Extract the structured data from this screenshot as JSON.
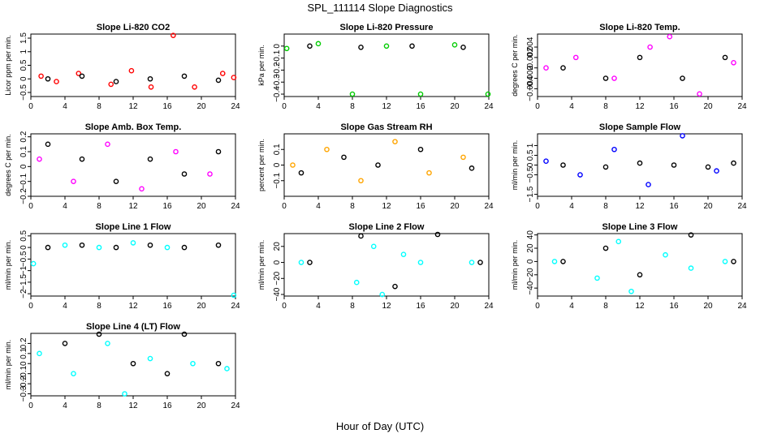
{
  "figure": {
    "title": "SPL_111114  Slope Diagnostics",
    "xlabel": "Hour of Day (UTC)"
  },
  "chart_data": [
    {
      "type": "scatter",
      "title": "Slope Li-820 CO2",
      "ylabel": "Licor ppm per min.",
      "color": "#ff0000",
      "ylim": [
        -0.65,
        1.65
      ],
      "yticks": [
        -0.5,
        0.0,
        0.5,
        1.0,
        1.5
      ],
      "xlim": [
        0,
        24
      ],
      "xticks": [
        0,
        4,
        8,
        12,
        16,
        20,
        24
      ],
      "series": [
        {
          "color": "#ff0000",
          "points": [
            [
              1.2,
              0.1
            ],
            [
              3.0,
              -0.1
            ],
            [
              5.6,
              0.2
            ],
            [
              9.4,
              -0.2
            ],
            [
              11.8,
              0.3
            ],
            [
              14.1,
              -0.3
            ],
            [
              16.7,
              1.6
            ],
            [
              19.2,
              -0.3
            ],
            [
              22.5,
              0.2
            ],
            [
              23.8,
              0.05
            ]
          ]
        },
        {
          "color": "#000000",
          "points": [
            [
              2.0,
              0.0
            ],
            [
              6.0,
              0.1
            ],
            [
              10.0,
              -0.1
            ],
            [
              14.0,
              0.0
            ],
            [
              18.0,
              0.1
            ],
            [
              22.0,
              -0.05
            ]
          ]
        }
      ]
    },
    {
      "type": "scatter",
      "title": "Slope Li-820 Pressure",
      "ylabel": "kPa per min.",
      "color": "#00cc00",
      "ylim": [
        -0.42,
        0.1
      ],
      "yticks": [
        -0.4,
        -0.3,
        -0.2,
        -0.1,
        0.0
      ],
      "xlim": [
        0,
        24
      ],
      "xticks": [
        0,
        4,
        8,
        12,
        16,
        20,
        24
      ],
      "series": [
        {
          "color": "#00cc00",
          "points": [
            [
              0.3,
              -0.02
            ],
            [
              4.0,
              0.02
            ],
            [
              8.0,
              -0.4
            ],
            [
              12.0,
              0.0
            ],
            [
              16.0,
              -0.4
            ],
            [
              20.0,
              0.01
            ],
            [
              24.0,
              -0.4
            ]
          ]
        },
        {
          "color": "#000000",
          "points": [
            [
              3.0,
              0.0
            ],
            [
              9.0,
              -0.01
            ],
            [
              15.0,
              0.0
            ],
            [
              21.0,
              -0.01
            ]
          ]
        }
      ]
    },
    {
      "type": "scatter",
      "title": "Slope Li-820 Temp.",
      "ylabel": "degrees C per min.",
      "color": "#ff00ff",
      "ylim": [
        -0.0055,
        0.0065
      ],
      "yticks": [
        -0.004,
        -0.002,
        0.0,
        0.002,
        0.004
      ],
      "xlim": [
        0,
        24
      ],
      "xticks": [
        0,
        4,
        8,
        12,
        16,
        20,
        24
      ],
      "series": [
        {
          "color": "#ff00ff",
          "points": [
            [
              1.0,
              0.0
            ],
            [
              4.5,
              0.002
            ],
            [
              9.0,
              -0.002
            ],
            [
              13.2,
              0.004
            ],
            [
              15.5,
              0.006
            ],
            [
              19.0,
              -0.005
            ],
            [
              23.0,
              0.001
            ]
          ]
        },
        {
          "color": "#000000",
          "points": [
            [
              3.0,
              0.0
            ],
            [
              8.0,
              -0.002
            ],
            [
              12.0,
              0.002
            ],
            [
              17.0,
              -0.002
            ],
            [
              22.0,
              0.002
            ]
          ]
        }
      ]
    },
    {
      "type": "scatter",
      "title": "Slope Amb. Box Temp.",
      "ylabel": "degrees C per min.",
      "color": "#ff00ff",
      "ylim": [
        -0.2,
        0.22
      ],
      "yticks": [
        -0.2,
        -0.1,
        0.0,
        0.1,
        0.2
      ],
      "xlim": [
        0,
        24
      ],
      "xticks": [
        0,
        4,
        8,
        12,
        16,
        20,
        24
      ],
      "series": [
        {
          "color": "#ff00ff",
          "points": [
            [
              1.0,
              0.05
            ],
            [
              5.0,
              -0.1
            ],
            [
              9.0,
              0.15
            ],
            [
              13.0,
              -0.15
            ],
            [
              17.0,
              0.1
            ],
            [
              21.0,
              -0.05
            ]
          ]
        },
        {
          "color": "#000000",
          "points": [
            [
              2.0,
              0.15
            ],
            [
              6.0,
              0.05
            ],
            [
              10.0,
              -0.1
            ],
            [
              14.0,
              0.05
            ],
            [
              18.0,
              -0.05
            ],
            [
              22.0,
              0.1
            ]
          ]
        }
      ]
    },
    {
      "type": "scatter",
      "title": "Slope Gas Stream RH",
      "ylabel": "percent per min.",
      "color": "#ffa500",
      "ylim": [
        -0.2,
        0.2
      ],
      "yticks": [
        -0.1,
        0.0,
        0.1
      ],
      "xlim": [
        0,
        24
      ],
      "xticks": [
        0,
        4,
        8,
        12,
        16,
        20,
        24
      ],
      "series": [
        {
          "color": "#ffa500",
          "points": [
            [
              1.0,
              0.0
            ],
            [
              5.0,
              0.1
            ],
            [
              9.0,
              -0.1
            ],
            [
              13.0,
              0.15
            ],
            [
              17.0,
              -0.05
            ],
            [
              21.0,
              0.05
            ]
          ]
        },
        {
          "color": "#000000",
          "points": [
            [
              2.0,
              -0.05
            ],
            [
              7.0,
              0.05
            ],
            [
              11.0,
              0.0
            ],
            [
              16.0,
              0.1
            ],
            [
              22.0,
              -0.02
            ]
          ]
        }
      ]
    },
    {
      "type": "scatter",
      "title": "Slope Sample Flow",
      "ylabel": "ml/min per min.",
      "color": "#0000ff",
      "ylim": [
        -1.6,
        1.6
      ],
      "yticks": [
        -1.5,
        -0.5,
        0.0,
        0.5,
        1.0
      ],
      "xlim": [
        0,
        24
      ],
      "xticks": [
        0,
        4,
        8,
        12,
        16,
        20,
        24
      ],
      "series": [
        {
          "color": "#0000ff",
          "points": [
            [
              1.0,
              0.2
            ],
            [
              5.0,
              -0.5
            ],
            [
              9.0,
              0.8
            ],
            [
              13.0,
              -1.0
            ],
            [
              17.0,
              1.5
            ],
            [
              21.0,
              -0.3
            ]
          ]
        },
        {
          "color": "#000000",
          "points": [
            [
              3.0,
              0.0
            ],
            [
              8.0,
              -0.1
            ],
            [
              12.0,
              0.1
            ],
            [
              16.0,
              0.0
            ],
            [
              20.0,
              -0.1
            ],
            [
              23.0,
              0.1
            ]
          ]
        }
      ]
    },
    {
      "type": "scatter",
      "title": "Slope Line 1 Flow",
      "ylabel": "ml/min per min.",
      "color": "#00ffff",
      "ylim": [
        -2.1,
        0.6
      ],
      "yticks": [
        -2.0,
        -1.5,
        -1.0,
        -0.5,
        0.0,
        0.5
      ],
      "xlim": [
        0,
        24
      ],
      "xticks": [
        0,
        4,
        8,
        12,
        16,
        20,
        24
      ],
      "series": [
        {
          "color": "#00ffff",
          "points": [
            [
              0.3,
              -0.7
            ],
            [
              4.0,
              0.1
            ],
            [
              8.0,
              0.0
            ],
            [
              12.0,
              0.2
            ],
            [
              16.0,
              0.0
            ],
            [
              23.8,
              -2.1
            ]
          ]
        },
        {
          "color": "#000000",
          "points": [
            [
              2.0,
              0.0
            ],
            [
              6.0,
              0.1
            ],
            [
              10.0,
              0.0
            ],
            [
              14.0,
              0.1
            ],
            [
              18.0,
              0.0
            ],
            [
              22.0,
              0.1
            ]
          ]
        }
      ]
    },
    {
      "type": "scatter",
      "title": "Slope Line 2 Flow",
      "ylabel": "ml/min per min.",
      "color": "#00ffff",
      "ylim": [
        -42,
        36
      ],
      "yticks": [
        -40,
        -20,
        0,
        20
      ],
      "xlim": [
        0,
        24
      ],
      "xticks": [
        0,
        4,
        8,
        12,
        16,
        20,
        24
      ],
      "series": [
        {
          "color": "#00ffff",
          "points": [
            [
              2.0,
              0.0
            ],
            [
              8.5,
              -25
            ],
            [
              10.5,
              20
            ],
            [
              11.5,
              -40
            ],
            [
              14.0,
              10
            ],
            [
              16.0,
              0
            ],
            [
              22.0,
              0
            ]
          ]
        },
        {
          "color": "#000000",
          "points": [
            [
              3.0,
              0.0
            ],
            [
              9.0,
              33
            ],
            [
              13.0,
              -30
            ],
            [
              18.0,
              35
            ],
            [
              23.0,
              0.0
            ]
          ]
        }
      ]
    },
    {
      "type": "scatter",
      "title": "Slope Line 3 Flow",
      "ylabel": "ml/min per min.",
      "color": "#00ffff",
      "ylim": [
        -52,
        42
      ],
      "yticks": [
        -40,
        -20,
        0,
        20,
        40
      ],
      "xlim": [
        0,
        24
      ],
      "xticks": [
        0,
        4,
        8,
        12,
        16,
        20,
        24
      ],
      "series": [
        {
          "color": "#00ffff",
          "points": [
            [
              2.0,
              0.0
            ],
            [
              7.0,
              -25
            ],
            [
              9.5,
              30
            ],
            [
              11.0,
              -45
            ],
            [
              15.0,
              10
            ],
            [
              18.0,
              -10
            ],
            [
              22.0,
              0
            ]
          ]
        },
        {
          "color": "#000000",
          "points": [
            [
              3.0,
              0.0
            ],
            [
              8.0,
              20
            ],
            [
              12.0,
              -20
            ],
            [
              18.0,
              40
            ],
            [
              23.0,
              0.0
            ]
          ]
        }
      ]
    },
    {
      "type": "scatter",
      "title": "Slope Line 4 (LT) Flow",
      "ylabel": "ml/min per min.",
      "color": "#00ffff",
      "ylim": [
        -0.32,
        0.3
      ],
      "yticks": [
        -0.3,
        -0.2,
        -0.1,
        0.0,
        0.1,
        0.2
      ],
      "xlim": [
        0,
        24
      ],
      "xticks": [
        0,
        4,
        8,
        12,
        16,
        20,
        24
      ],
      "series": [
        {
          "color": "#00ffff",
          "points": [
            [
              1.0,
              0.1
            ],
            [
              5.0,
              -0.1
            ],
            [
              9.0,
              0.2
            ],
            [
              11.0,
              -0.3
            ],
            [
              14.0,
              0.05
            ],
            [
              19.0,
              0.0
            ],
            [
              23.0,
              -0.05
            ]
          ]
        },
        {
          "color": "#000000",
          "points": [
            [
              4.0,
              0.2
            ],
            [
              8.0,
              0.3
            ],
            [
              12.0,
              0.0
            ],
            [
              16.0,
              -0.1
            ],
            [
              18.0,
              0.3
            ],
            [
              22.0,
              0.0
            ]
          ]
        }
      ]
    }
  ]
}
